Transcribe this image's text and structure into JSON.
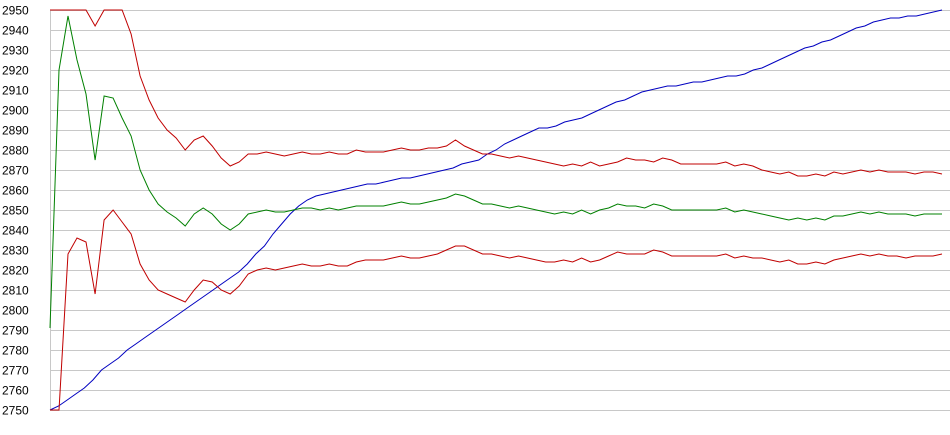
{
  "chart_data": {
    "type": "line",
    "title": "",
    "xlabel": "",
    "ylabel": "",
    "ylim": [
      2750,
      2950
    ],
    "ytick_step": 10,
    "y_ticks": [
      "2950",
      "2940",
      "2930",
      "2920",
      "2910",
      "2900",
      "2890",
      "2880",
      "2870",
      "2860",
      "2850",
      "2840",
      "2830",
      "2820",
      "2810",
      "2800",
      "2790",
      "2780",
      "2770",
      "2760",
      "2750"
    ],
    "grid": true,
    "legend": "none",
    "series": [
      {
        "color": "#0000c0",
        "values": [
          2750,
          2752,
          2755,
          2758,
          2761,
          2765,
          2770,
          2773,
          2776,
          2780,
          2783,
          2786,
          2789,
          2792,
          2795,
          2798,
          2801,
          2804,
          2807,
          2810,
          2813,
          2816,
          2819,
          2823,
          2828,
          2832,
          2838,
          2843,
          2848,
          2852,
          2855,
          2857,
          2858,
          2859,
          2860,
          2861,
          2862,
          2863,
          2863,
          2864,
          2865,
          2866,
          2866,
          2867,
          2868,
          2869,
          2870,
          2871,
          2873,
          2874,
          2875,
          2878,
          2880,
          2883,
          2885,
          2887,
          2889,
          2891,
          2891,
          2892,
          2894,
          2895,
          2896,
          2898,
          2900,
          2902,
          2904,
          2905,
          2907,
          2909,
          2910,
          2911,
          2912,
          2912,
          2913,
          2914,
          2914,
          2915,
          2916,
          2917,
          2917,
          2918,
          2920,
          2921,
          2923,
          2925,
          2927,
          2929,
          2931,
          2932,
          2934,
          2935,
          2937,
          2939,
          2941,
          2942,
          2944,
          2945,
          2946,
          2946,
          2947,
          2947,
          2948,
          2949,
          2950
        ]
      },
      {
        "color": "#008000",
        "values": [
          2791,
          2920,
          2947,
          2925,
          2908,
          2875,
          2907,
          2906,
          2896,
          2887,
          2870,
          2860,
          2853,
          2849,
          2846,
          2842,
          2848,
          2851,
          2848,
          2843,
          2840,
          2843,
          2848,
          2849,
          2850,
          2849,
          2849,
          2850,
          2851,
          2851,
          2850,
          2851,
          2850,
          2851,
          2852,
          2852,
          2852,
          2852,
          2853,
          2854,
          2853,
          2853,
          2854,
          2855,
          2856,
          2858,
          2857,
          2855,
          2853,
          2853,
          2852,
          2851,
          2852,
          2851,
          2850,
          2849,
          2848,
          2849,
          2848,
          2850,
          2848,
          2850,
          2851,
          2853,
          2852,
          2852,
          2851,
          2853,
          2852,
          2850,
          2850,
          2850,
          2850,
          2850,
          2850,
          2851,
          2849,
          2850,
          2849,
          2848,
          2847,
          2846,
          2845,
          2846,
          2845,
          2846,
          2845,
          2847,
          2847,
          2848,
          2849,
          2848,
          2849,
          2848,
          2848,
          2848,
          2847,
          2848,
          2848,
          2848
        ]
      },
      {
        "color": "#c00000",
        "values": [
          2950,
          2950,
          2950,
          2950,
          2950,
          2942,
          2950,
          2950,
          2950,
          2938,
          2917,
          2905,
          2896,
          2890,
          2886,
          2880,
          2885,
          2887,
          2882,
          2876,
          2872,
          2874,
          2878,
          2878,
          2879,
          2878,
          2877,
          2878,
          2879,
          2878,
          2878,
          2879,
          2878,
          2878,
          2880,
          2879,
          2879,
          2879,
          2880,
          2881,
          2880,
          2880,
          2881,
          2881,
          2882,
          2885,
          2882,
          2880,
          2878,
          2878,
          2877,
          2876,
          2877,
          2876,
          2875,
          2874,
          2873,
          2872,
          2873,
          2872,
          2874,
          2872,
          2873,
          2874,
          2876,
          2875,
          2875,
          2874,
          2876,
          2875,
          2873,
          2873,
          2873,
          2873,
          2873,
          2874,
          2872,
          2873,
          2872,
          2870,
          2869,
          2868,
          2869,
          2867,
          2867,
          2868,
          2867,
          2869,
          2868,
          2869,
          2870,
          2869,
          2870,
          2869,
          2869,
          2869,
          2868,
          2869,
          2869,
          2868
        ]
      },
      {
        "color": "#c00000",
        "values": [
          2750,
          2750,
          2828,
          2836,
          2834,
          2808,
          2845,
          2850,
          2844,
          2838,
          2823,
          2815,
          2810,
          2808,
          2806,
          2804,
          2810,
          2815,
          2814,
          2810,
          2808,
          2812,
          2818,
          2820,
          2821,
          2820,
          2821,
          2822,
          2823,
          2822,
          2822,
          2823,
          2822,
          2822,
          2824,
          2825,
          2825,
          2825,
          2826,
          2827,
          2826,
          2826,
          2827,
          2828,
          2830,
          2832,
          2832,
          2830,
          2828,
          2828,
          2827,
          2826,
          2827,
          2826,
          2825,
          2824,
          2824,
          2825,
          2824,
          2826,
          2824,
          2825,
          2827,
          2829,
          2828,
          2828,
          2828,
          2830,
          2829,
          2827,
          2827,
          2827,
          2827,
          2827,
          2827,
          2828,
          2826,
          2827,
          2826,
          2826,
          2825,
          2824,
          2825,
          2823,
          2823,
          2824,
          2823,
          2825,
          2826,
          2827,
          2828,
          2827,
          2828,
          2827,
          2827,
          2826,
          2827,
          2827,
          2827,
          2828
        ]
      }
    ]
  }
}
